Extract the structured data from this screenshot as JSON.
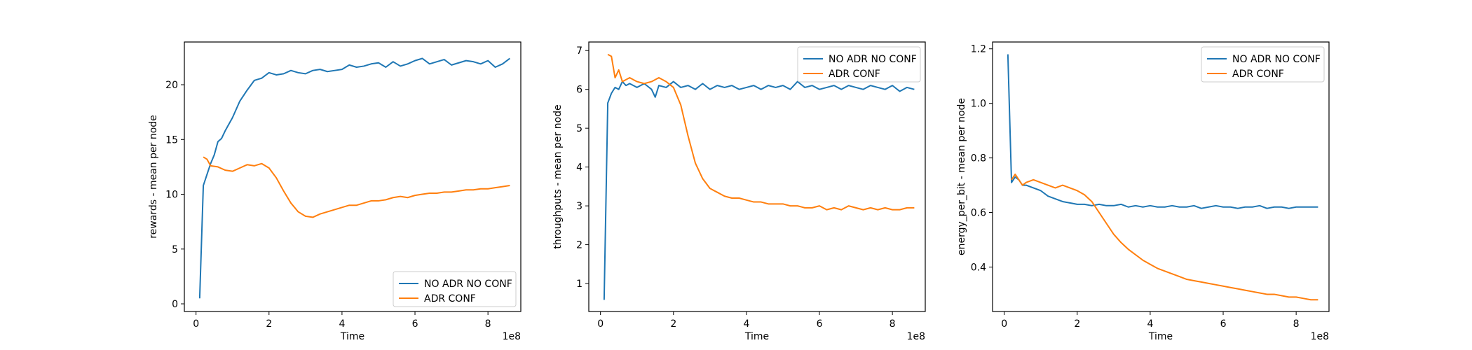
{
  "chart_data": [
    {
      "type": "line",
      "xlabel": "Time",
      "ylabel": "rewards - mean per node",
      "x_offset_label": "1e8",
      "xlim": [
        -0.32,
        8.9
      ],
      "ylim": [
        -0.7,
        23.9
      ],
      "xticks": [
        0,
        2,
        4,
        6,
        8
      ],
      "yticks": [
        0,
        5,
        10,
        15,
        20
      ],
      "legend_position": "lower right",
      "series": [
        {
          "name": "NO ADR NO CONF",
          "color": "#1f77b4",
          "x": [
            0.1,
            0.2,
            0.3,
            0.4,
            0.5,
            0.6,
            0.7,
            0.8,
            1.0,
            1.2,
            1.4,
            1.6,
            1.8,
            2.0,
            2.2,
            2.4,
            2.6,
            2.8,
            3.0,
            3.2,
            3.4,
            3.6,
            3.8,
            4.0,
            4.2,
            4.4,
            4.6,
            4.8,
            5.0,
            5.2,
            5.4,
            5.6,
            5.8,
            6.0,
            6.2,
            6.4,
            6.6,
            6.8,
            7.0,
            7.2,
            7.4,
            7.6,
            7.8,
            8.0,
            8.2,
            8.4,
            8.6
          ],
          "y": [
            0.5,
            10.8,
            11.8,
            12.8,
            13.6,
            14.8,
            15.1,
            15.8,
            17.0,
            18.5,
            19.5,
            20.4,
            20.6,
            21.1,
            20.9,
            21.0,
            21.3,
            21.1,
            21.0,
            21.3,
            21.4,
            21.2,
            21.3,
            21.4,
            21.8,
            21.6,
            21.7,
            21.9,
            22.0,
            21.6,
            22.1,
            21.7,
            21.9,
            22.2,
            22.4,
            21.9,
            22.1,
            22.3,
            21.8,
            22.0,
            22.2,
            22.1,
            21.9,
            22.2,
            21.6,
            21.9,
            22.4
          ]
        },
        {
          "name": "ADR CONF",
          "color": "#ff7f0e",
          "x": [
            0.2,
            0.3,
            0.4,
            0.6,
            0.8,
            1.0,
            1.2,
            1.4,
            1.6,
            1.8,
            2.0,
            2.2,
            2.4,
            2.6,
            2.8,
            3.0,
            3.2,
            3.4,
            3.6,
            3.8,
            4.0,
            4.2,
            4.4,
            4.6,
            4.8,
            5.0,
            5.2,
            5.4,
            5.6,
            5.8,
            6.0,
            6.2,
            6.4,
            6.6,
            6.8,
            7.0,
            7.2,
            7.4,
            7.6,
            7.8,
            8.0,
            8.2,
            8.4,
            8.6
          ],
          "y": [
            13.4,
            13.2,
            12.6,
            12.5,
            12.2,
            12.1,
            12.4,
            12.7,
            12.6,
            12.8,
            12.4,
            11.5,
            10.3,
            9.2,
            8.4,
            8.0,
            7.9,
            8.2,
            8.4,
            8.6,
            8.8,
            9.0,
            9.0,
            9.2,
            9.4,
            9.4,
            9.5,
            9.7,
            9.8,
            9.7,
            9.9,
            10.0,
            10.1,
            10.1,
            10.2,
            10.2,
            10.3,
            10.4,
            10.4,
            10.5,
            10.5,
            10.6,
            10.7,
            10.8
          ]
        }
      ]
    },
    {
      "type": "line",
      "xlabel": "Time",
      "ylabel": "throughputs - mean per node",
      "x_offset_label": "1e8",
      "xlim": [
        -0.32,
        8.9
      ],
      "ylim": [
        0.28,
        7.22
      ],
      "xticks": [
        0,
        2,
        4,
        6,
        8
      ],
      "yticks": [
        1,
        2,
        3,
        4,
        5,
        6,
        7
      ],
      "legend_position": "upper right",
      "series": [
        {
          "name": "NO ADR NO CONF",
          "color": "#1f77b4",
          "x": [
            0.1,
            0.2,
            0.3,
            0.4,
            0.5,
            0.6,
            0.7,
            0.8,
            1.0,
            1.2,
            1.4,
            1.5,
            1.6,
            1.8,
            2.0,
            2.2,
            2.4,
            2.6,
            2.8,
            3.0,
            3.2,
            3.4,
            3.6,
            3.8,
            4.0,
            4.2,
            4.4,
            4.6,
            4.8,
            5.0,
            5.2,
            5.4,
            5.6,
            5.8,
            6.0,
            6.2,
            6.4,
            6.6,
            6.8,
            7.0,
            7.2,
            7.4,
            7.6,
            7.8,
            8.0,
            8.2,
            8.4,
            8.6
          ],
          "y": [
            0.58,
            5.65,
            5.9,
            6.05,
            6.0,
            6.2,
            6.1,
            6.15,
            6.05,
            6.15,
            6.0,
            5.8,
            6.1,
            6.05,
            6.2,
            6.05,
            6.1,
            6.0,
            6.15,
            6.0,
            6.1,
            6.05,
            6.1,
            6.0,
            6.05,
            6.1,
            6.0,
            6.1,
            6.05,
            6.1,
            6.0,
            6.2,
            6.05,
            6.1,
            6.0,
            6.05,
            6.1,
            6.0,
            6.1,
            6.05,
            6.0,
            6.1,
            6.05,
            6.0,
            6.1,
            5.95,
            6.05,
            6.0
          ]
        },
        {
          "name": "ADR CONF",
          "color": "#ff7f0e",
          "x": [
            0.2,
            0.3,
            0.4,
            0.5,
            0.6,
            0.8,
            1.0,
            1.2,
            1.4,
            1.6,
            1.8,
            2.0,
            2.2,
            2.4,
            2.6,
            2.8,
            3.0,
            3.2,
            3.4,
            3.6,
            3.8,
            4.0,
            4.2,
            4.4,
            4.6,
            4.8,
            5.0,
            5.2,
            5.4,
            5.6,
            5.8,
            6.0,
            6.2,
            6.4,
            6.6,
            6.8,
            7.0,
            7.2,
            7.4,
            7.6,
            7.8,
            8.0,
            8.2,
            8.4,
            8.6
          ],
          "y": [
            6.9,
            6.85,
            6.3,
            6.5,
            6.2,
            6.3,
            6.2,
            6.15,
            6.2,
            6.3,
            6.2,
            6.05,
            5.6,
            4.8,
            4.1,
            3.7,
            3.45,
            3.35,
            3.25,
            3.2,
            3.2,
            3.15,
            3.1,
            3.1,
            3.05,
            3.05,
            3.05,
            3.0,
            3.0,
            2.95,
            2.95,
            3.0,
            2.9,
            2.95,
            2.9,
            3.0,
            2.95,
            2.9,
            2.95,
            2.9,
            2.95,
            2.9,
            2.9,
            2.95,
            2.95
          ]
        }
      ]
    },
    {
      "type": "line",
      "xlabel": "Time",
      "ylabel": "energy_per_bit - mean per node",
      "x_offset_label": "1e8",
      "xlim": [
        -0.32,
        8.9
      ],
      "ylim": [
        0.237,
        1.225
      ],
      "xticks": [
        0,
        2,
        4,
        6,
        8
      ],
      "yticks": [
        0.4,
        0.6,
        0.8,
        1.0,
        1.2
      ],
      "legend_position": "upper right",
      "series": [
        {
          "name": "NO ADR NO CONF",
          "color": "#1f77b4",
          "x": [
            0.1,
            0.2,
            0.3,
            0.4,
            0.5,
            0.6,
            0.8,
            1.0,
            1.2,
            1.4,
            1.6,
            1.8,
            2.0,
            2.2,
            2.4,
            2.6,
            2.8,
            3.0,
            3.2,
            3.4,
            3.6,
            3.8,
            4.0,
            4.2,
            4.4,
            4.6,
            4.8,
            5.0,
            5.2,
            5.4,
            5.6,
            5.8,
            6.0,
            6.2,
            6.4,
            6.6,
            6.8,
            7.0,
            7.2,
            7.4,
            7.6,
            7.8,
            8.0,
            8.2,
            8.4,
            8.6
          ],
          "y": [
            1.18,
            0.71,
            0.73,
            0.72,
            0.7,
            0.7,
            0.69,
            0.68,
            0.66,
            0.65,
            0.64,
            0.635,
            0.63,
            0.63,
            0.625,
            0.63,
            0.625,
            0.625,
            0.63,
            0.62,
            0.625,
            0.62,
            0.625,
            0.62,
            0.62,
            0.625,
            0.62,
            0.62,
            0.625,
            0.615,
            0.62,
            0.625,
            0.62,
            0.62,
            0.615,
            0.62,
            0.62,
            0.625,
            0.615,
            0.62,
            0.62,
            0.615,
            0.62,
            0.62,
            0.62,
            0.62
          ]
        },
        {
          "name": "ADR CONF",
          "color": "#ff7f0e",
          "x": [
            0.2,
            0.3,
            0.4,
            0.5,
            0.6,
            0.8,
            1.0,
            1.2,
            1.4,
            1.6,
            1.8,
            2.0,
            2.2,
            2.4,
            2.6,
            2.8,
            3.0,
            3.2,
            3.4,
            3.6,
            3.8,
            4.0,
            4.2,
            4.4,
            4.6,
            4.8,
            5.0,
            5.2,
            5.4,
            5.6,
            5.8,
            6.0,
            6.2,
            6.4,
            6.6,
            6.8,
            7.0,
            7.2,
            7.4,
            7.6,
            7.8,
            8.0,
            8.2,
            8.4,
            8.6
          ],
          "y": [
            0.72,
            0.74,
            0.72,
            0.7,
            0.71,
            0.72,
            0.71,
            0.7,
            0.69,
            0.7,
            0.69,
            0.68,
            0.665,
            0.64,
            0.6,
            0.56,
            0.52,
            0.49,
            0.465,
            0.445,
            0.425,
            0.41,
            0.395,
            0.385,
            0.375,
            0.365,
            0.355,
            0.35,
            0.345,
            0.34,
            0.335,
            0.33,
            0.325,
            0.32,
            0.315,
            0.31,
            0.305,
            0.3,
            0.3,
            0.295,
            0.29,
            0.29,
            0.285,
            0.28,
            0.28
          ]
        }
      ]
    }
  ]
}
